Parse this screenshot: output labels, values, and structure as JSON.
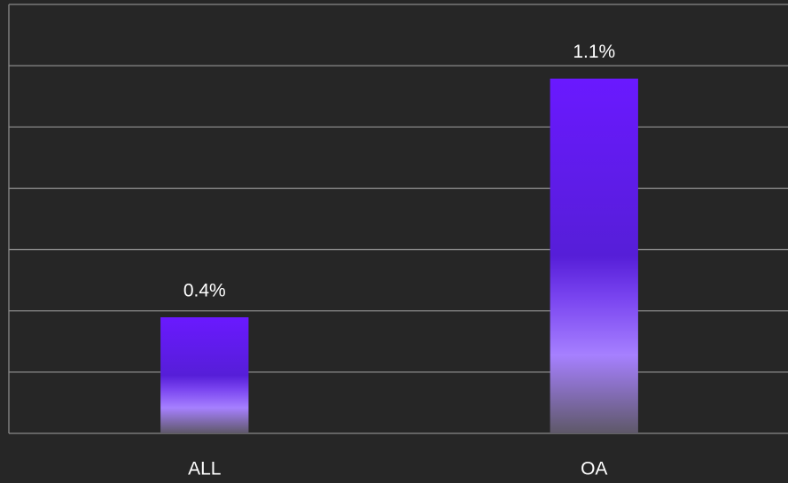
{
  "chart_data": {
    "type": "bar",
    "categories": [
      "ALL",
      "OA"
    ],
    "values": [
      0.36,
      1.1
    ],
    "value_labels": [
      "0.4%",
      "1.1%"
    ],
    "color": "#6a19ff",
    "ylim": [
      0,
      1.33
    ],
    "yticks": [
      0,
      0.19,
      0.38,
      0.57,
      0.76,
      0.95,
      1.14,
      1.33
    ],
    "grid": true
  }
}
